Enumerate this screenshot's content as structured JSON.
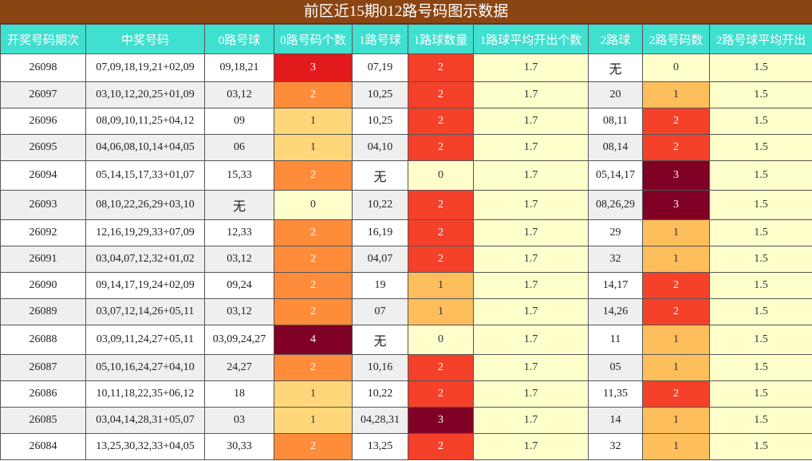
{
  "title": "前区近15期012路号码图示数据",
  "headers": [
    "开奖号码期次",
    "中奖号码",
    "0路号球",
    "0路号码个数",
    "1路号球",
    "1路球数量",
    "1路球平均开出个数",
    "2路球",
    "2路号码数",
    "2路号球平均开出"
  ],
  "colors": {
    "title_bg": "#8b4513",
    "header_bg": "#40e0d0",
    "level0": "#ffffcc",
    "level1": "#ffc060",
    "level2": "#ff8c3a",
    "level2_red": "#f5402a",
    "level3": "#e31a1c",
    "level3_dark": "#800026",
    "level4": "#800026"
  },
  "rows": [
    {
      "period": "26098",
      "numbers": "07,09,18,19,21+02,09",
      "r0": "09,18,21",
      "r0n": "3",
      "r1": "07,19",
      "r1n": "2",
      "r1avg": "1.7",
      "r2": "无",
      "r2n": "0",
      "r2avg": "1.5"
    },
    {
      "period": "26097",
      "numbers": "03,10,12,20,25+01,09",
      "r0": "03,12",
      "r0n": "2",
      "r1": "10,25",
      "r1n": "2",
      "r1avg": "1.7",
      "r2": "20",
      "r2n": "1",
      "r2avg": "1.5"
    },
    {
      "period": "26096",
      "numbers": "08,09,10,11,25+04,12",
      "r0": "09",
      "r0n": "1",
      "r1": "10,25",
      "r1n": "2",
      "r1avg": "1.7",
      "r2": "08,11",
      "r2n": "2",
      "r2avg": "1.5"
    },
    {
      "period": "26095",
      "numbers": "04,06,08,10,14+04,05",
      "r0": "06",
      "r0n": "1",
      "r1": "04,10",
      "r1n": "2",
      "r1avg": "1.7",
      "r2": "08,14",
      "r2n": "2",
      "r2avg": "1.5"
    },
    {
      "period": "26094",
      "numbers": "05,14,15,17,33+01,07",
      "r0": "15,33",
      "r0n": "2",
      "r1": "无",
      "r1n": "0",
      "r1avg": "1.7",
      "r2": "05,14,17",
      "r2n": "3",
      "r2avg": "1.5"
    },
    {
      "period": "26093",
      "numbers": "08,10,22,26,29+03,10",
      "r0": "无",
      "r0n": "0",
      "r1": "10,22",
      "r1n": "2",
      "r1avg": "1.7",
      "r2": "08,26,29",
      "r2n": "3",
      "r2avg": "1.5"
    },
    {
      "period": "26092",
      "numbers": "12,16,19,29,33+07,09",
      "r0": "12,33",
      "r0n": "2",
      "r1": "16,19",
      "r1n": "2",
      "r1avg": "1.7",
      "r2": "29",
      "r2n": "1",
      "r2avg": "1.5"
    },
    {
      "period": "26091",
      "numbers": "03,04,07,12,32+01,02",
      "r0": "03,12",
      "r0n": "2",
      "r1": "04,07",
      "r1n": "2",
      "r1avg": "1.7",
      "r2": "32",
      "r2n": "1",
      "r2avg": "1.5"
    },
    {
      "period": "26090",
      "numbers": "09,14,17,19,24+02,09",
      "r0": "09,24",
      "r0n": "2",
      "r1": "19",
      "r1n": "1",
      "r1avg": "1.7",
      "r2": "14,17",
      "r2n": "2",
      "r2avg": "1.5"
    },
    {
      "period": "26089",
      "numbers": "03,07,12,14,26+05,11",
      "r0": "03,12",
      "r0n": "2",
      "r1": "07",
      "r1n": "1",
      "r1avg": "1.7",
      "r2": "14,26",
      "r2n": "2",
      "r2avg": "1.5"
    },
    {
      "period": "26088",
      "numbers": "03,09,11,24,27+05,11",
      "r0": "03,09,24,27",
      "r0n": "4",
      "r1": "无",
      "r1n": "0",
      "r1avg": "1.7",
      "r2": "11",
      "r2n": "1",
      "r2avg": "1.5"
    },
    {
      "period": "26087",
      "numbers": "05,10,16,24,27+04,10",
      "r0": "24,27",
      "r0n": "2",
      "r1": "10,16",
      "r1n": "2",
      "r1avg": "1.7",
      "r2": "05",
      "r2n": "1",
      "r2avg": "1.5"
    },
    {
      "period": "26086",
      "numbers": "10,11,18,22,35+06,12",
      "r0": "18",
      "r0n": "1",
      "r1": "10,22",
      "r1n": "2",
      "r1avg": "1.7",
      "r2": "11,35",
      "r2n": "2",
      "r2avg": "1.5"
    },
    {
      "period": "26085",
      "numbers": "03,04,14,28,31+05,07",
      "r0": "03",
      "r0n": "1",
      "r1": "04,28,31",
      "r1n": "3",
      "r1avg": "1.7",
      "r2": "14",
      "r2n": "1",
      "r2avg": "1.5"
    },
    {
      "period": "26084",
      "numbers": "13,25,30,32,33+04,05",
      "r0": "30,33",
      "r0n": "2",
      "r1": "13,25",
      "r1n": "2",
      "r1avg": "1.7",
      "r2": "32",
      "r2n": "1",
      "r2avg": "1.5"
    }
  ]
}
